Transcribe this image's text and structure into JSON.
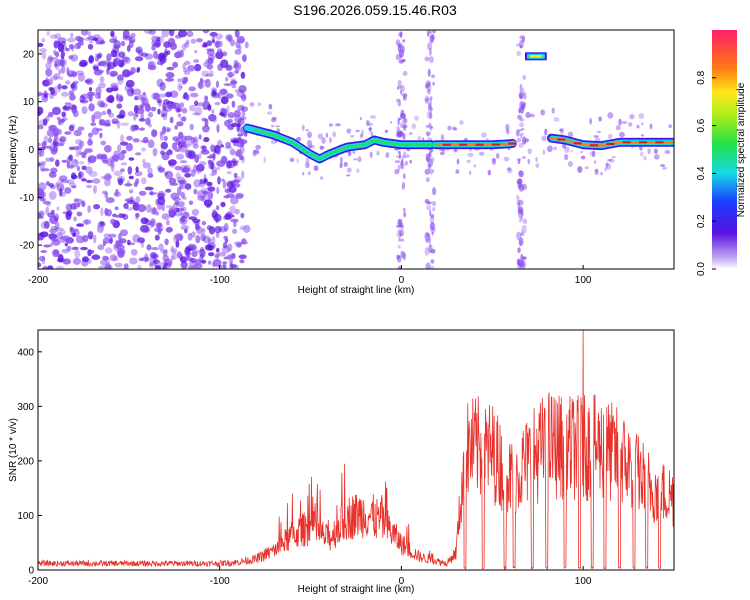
{
  "title": "S196.2026.059.15.46.R03",
  "colors": {
    "line": "#e8312b",
    "scatter": "#8a4cf0",
    "scatter_dark": "#5a12e0"
  },
  "chart_data": [
    {
      "type": "heatmap",
      "xlabel": "Height of straight line (km)",
      "ylabel": "Frequency (Hz)",
      "xlim": [
        -200,
        150
      ],
      "ylim": [
        -25,
        25
      ],
      "xticks": [
        -200,
        -100,
        0,
        100
      ],
      "yticks": [
        -20,
        -10,
        0,
        10,
        20
      ],
      "colorbar": {
        "label": "Normalized spectral amplitude",
        "range": [
          0,
          1
        ],
        "ticks": [
          0.0,
          0.2,
          0.4,
          0.6,
          0.8
        ],
        "tick_labels": [
          "0.0",
          "0.2",
          "0.4",
          "0.6",
          "0.8"
        ]
      },
      "ridge": {
        "x": [
          -90,
          -80,
          -70,
          -60,
          -50,
          -45,
          -40,
          -30,
          -20,
          -15,
          -10,
          0,
          10,
          20,
          30,
          40,
          50,
          60,
          80,
          90,
          100,
          110,
          120,
          130,
          140,
          150
        ],
        "y": [
          5,
          4,
          3,
          1.5,
          -1,
          -2,
          -1,
          0.5,
          1,
          2,
          1.5,
          1,
          1,
          1,
          1,
          1,
          1,
          1.2,
          2.5,
          2,
          1,
          0.8,
          1.5,
          1.5,
          1.5,
          1.5
        ]
      },
      "gaps": [
        [
          17,
          18
        ],
        [
          62,
          82
        ]
      ],
      "upper_segment": {
        "x": [
          68,
          80
        ],
        "y": 19.5
      },
      "noise_region_x": [
        -200,
        -85
      ],
      "vertical_noise_strips_x": [
        0,
        16,
        66
      ]
    },
    {
      "type": "line",
      "xlabel": "Height of straight line (km)",
      "ylabel": "SNR (10 * v/v)",
      "xlim": [
        -200,
        150
      ],
      "ylim": [
        0,
        440
      ],
      "xticks": [
        -200,
        -100,
        0,
        100
      ],
      "yticks": [
        0,
        100,
        200,
        300,
        400
      ],
      "envelope": {
        "x": [
          -200,
          -150,
          -100,
          -90,
          -80,
          -70,
          -60,
          -50,
          -40,
          -30,
          -20,
          -10,
          0,
          10,
          20,
          25,
          30,
          35,
          40,
          50,
          60,
          70,
          80,
          90,
          100,
          110,
          120,
          130,
          140,
          150
        ],
        "y": [
          15,
          15,
          15,
          18,
          25,
          45,
          80,
          100,
          70,
          120,
          130,
          110,
          60,
          30,
          20,
          15,
          40,
          270,
          280,
          270,
          210,
          250,
          290,
          280,
          280,
          280,
          260,
          220,
          180,
          170
        ]
      },
      "dropouts_x": [
        35,
        45,
        57,
        62,
        72,
        80,
        90,
        98,
        105,
        112,
        120,
        128,
        135,
        142
      ],
      "peak": {
        "x": 100,
        "y": 440
      }
    }
  ]
}
